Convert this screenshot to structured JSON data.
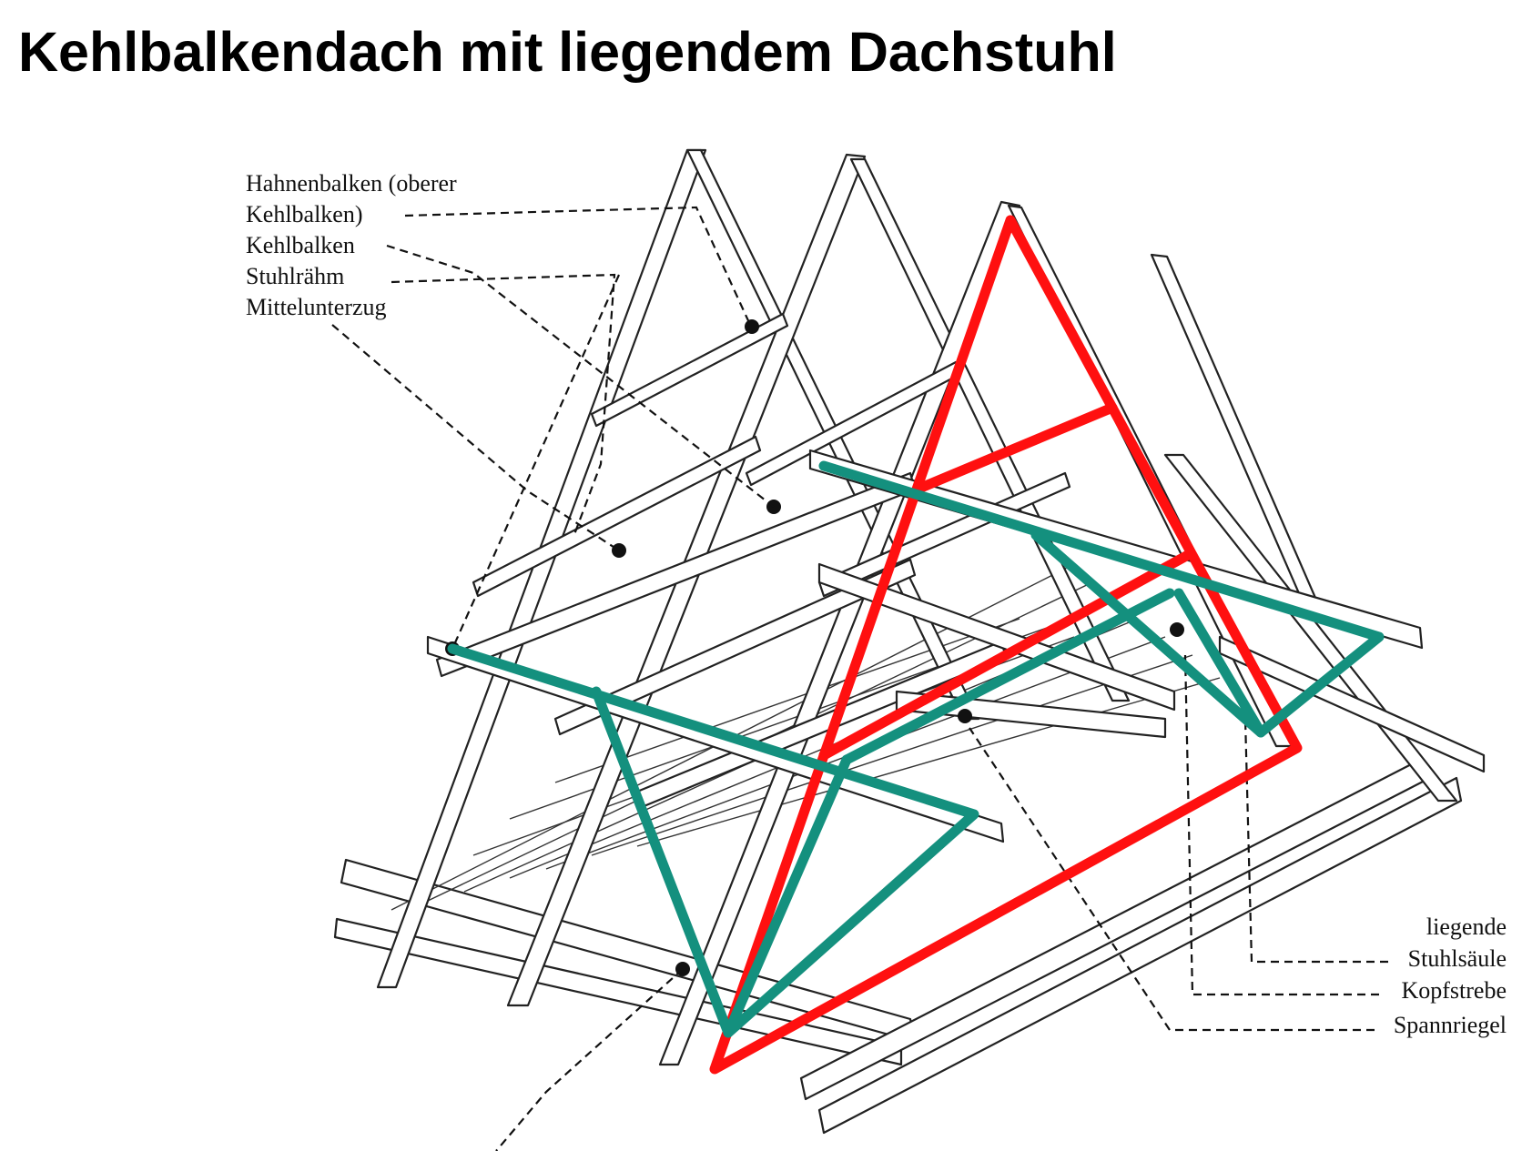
{
  "title": "Kehlbalkendach mit liegendem Dachstuhl",
  "labels_left": [
    "Hahnenbalken (oberer",
    "Kehlbalken)",
    "Kehlbalken",
    "Stuhlrähm",
    "Mittelunterzug"
  ],
  "labels_right": [
    "liegende",
    "Stuhlsäule",
    "Kopfstrebe",
    "Spannriegel"
  ],
  "colors": {
    "highlight_truss": "#ff1010",
    "highlight_stuhl": "#14907e",
    "line": "#222222"
  }
}
